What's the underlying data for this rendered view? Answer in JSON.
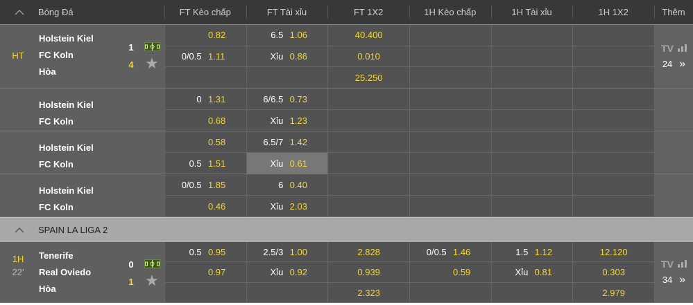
{
  "header": {
    "sport": "Bóng Đá",
    "columns": [
      "FT Kèo chấp",
      "FT Tài xỉu",
      "FT 1X2",
      "1H Kèo chấp",
      "1H Tài xỉu",
      "1H 1X2"
    ],
    "more": "Thêm"
  },
  "colors": {
    "accent": "#f5d631",
    "header_bg": "#383838",
    "league_bg": "#a9a9a9",
    "team_bg": "#5f5f5f",
    "odds_bg": "#525252"
  },
  "groups": [
    {
      "league": "",
      "matches": [
        {
          "status": "HT",
          "minute": "",
          "home": "Holstein Kiel",
          "away": "FC Koln",
          "draw": "Hòa",
          "score_home": "1",
          "score_away": "4",
          "rows": 3,
          "live": true,
          "markets": [
            [
              {
                "line": "",
                "odds": "0.82"
              },
              {
                "line": "0/0.5",
                "odds": "1.11"
              },
              {
                "line": "",
                "odds": ""
              }
            ],
            [
              {
                "line": "6.5",
                "odds": "1.06"
              },
              {
                "line": "Xỉu",
                "odds": "0.86"
              },
              {
                "line": "",
                "odds": ""
              }
            ],
            [
              "40.400",
              "0.010",
              "25.250"
            ],
            [
              {
                "line": "",
                "odds": ""
              },
              {
                "line": "",
                "odds": ""
              },
              {
                "line": "",
                "odds": ""
              }
            ],
            [
              {
                "line": "",
                "odds": ""
              },
              {
                "line": "",
                "odds": ""
              },
              {
                "line": "",
                "odds": ""
              }
            ],
            [
              "",
              "",
              ""
            ]
          ],
          "tv": "TV",
          "more_count": "24"
        },
        {
          "home": "Holstein Kiel",
          "away": "FC Koln",
          "rows": 2,
          "markets": [
            [
              {
                "line": "0",
                "odds": "1.31"
              },
              {
                "line": "",
                "odds": "0.68"
              }
            ],
            [
              {
                "line": "6/6.5",
                "odds": "0.73"
              },
              {
                "line": "Xỉu",
                "odds": "1.23"
              }
            ],
            [
              "",
              ""
            ],
            [
              {
                "line": "",
                "odds": ""
              },
              {
                "line": "",
                "odds": ""
              }
            ],
            [
              {
                "line": "",
                "odds": ""
              },
              {
                "line": "",
                "odds": ""
              }
            ],
            [
              "",
              ""
            ]
          ]
        },
        {
          "home": "Holstein Kiel",
          "away": "FC Koln",
          "rows": 2,
          "highlight": "1.1",
          "markets": [
            [
              {
                "line": "",
                "odds": "0.58"
              },
              {
                "line": "0.5",
                "odds": "1.51"
              }
            ],
            [
              {
                "line": "6.5/7",
                "odds": "1.42"
              },
              {
                "line": "Xỉu",
                "odds": "0.61"
              }
            ],
            [
              "",
              ""
            ],
            [
              {
                "line": "",
                "odds": ""
              },
              {
                "line": "",
                "odds": ""
              }
            ],
            [
              {
                "line": "",
                "odds": ""
              },
              {
                "line": "",
                "odds": ""
              }
            ],
            [
              "",
              ""
            ]
          ]
        },
        {
          "home": "Holstein Kiel",
          "away": "FC Koln",
          "rows": 2,
          "markets": [
            [
              {
                "line": "0/0.5",
                "odds": "1.85"
              },
              {
                "line": "",
                "odds": "0.46"
              }
            ],
            [
              {
                "line": "6",
                "odds": "0.40"
              },
              {
                "line": "Xỉu",
                "odds": "2.03"
              }
            ],
            [
              "",
              ""
            ],
            [
              {
                "line": "",
                "odds": ""
              },
              {
                "line": "",
                "odds": ""
              }
            ],
            [
              {
                "line": "",
                "odds": ""
              },
              {
                "line": "",
                "odds": ""
              }
            ],
            [
              "",
              ""
            ]
          ]
        }
      ]
    },
    {
      "league": "SPAIN LA LIGA 2",
      "matches": [
        {
          "status": "1H",
          "minute": "22'",
          "home": "Tenerife",
          "away": "Real Oviedo",
          "draw": "Hòa",
          "score_home": "0",
          "score_away": "1",
          "rows": 3,
          "live": true,
          "markets": [
            [
              {
                "line": "0.5",
                "odds": "0.95"
              },
              {
                "line": "",
                "odds": "0.97"
              },
              {
                "line": "",
                "odds": ""
              }
            ],
            [
              {
                "line": "2.5/3",
                "odds": "1.00"
              },
              {
                "line": "Xỉu",
                "odds": "0.92"
              },
              {
                "line": "",
                "odds": ""
              }
            ],
            [
              "2.828",
              "0.939",
              "2.323"
            ],
            [
              {
                "line": "0/0.5",
                "odds": "1.46"
              },
              {
                "line": "",
                "odds": "0.59"
              },
              {
                "line": "",
                "odds": ""
              }
            ],
            [
              {
                "line": "1.5",
                "odds": "1.12"
              },
              {
                "line": "Xỉu",
                "odds": "0.81"
              },
              {
                "line": "",
                "odds": ""
              }
            ],
            [
              "12.120",
              "0.303",
              "2.979"
            ]
          ],
          "tv": "TV",
          "more_count": "34"
        }
      ]
    }
  ]
}
